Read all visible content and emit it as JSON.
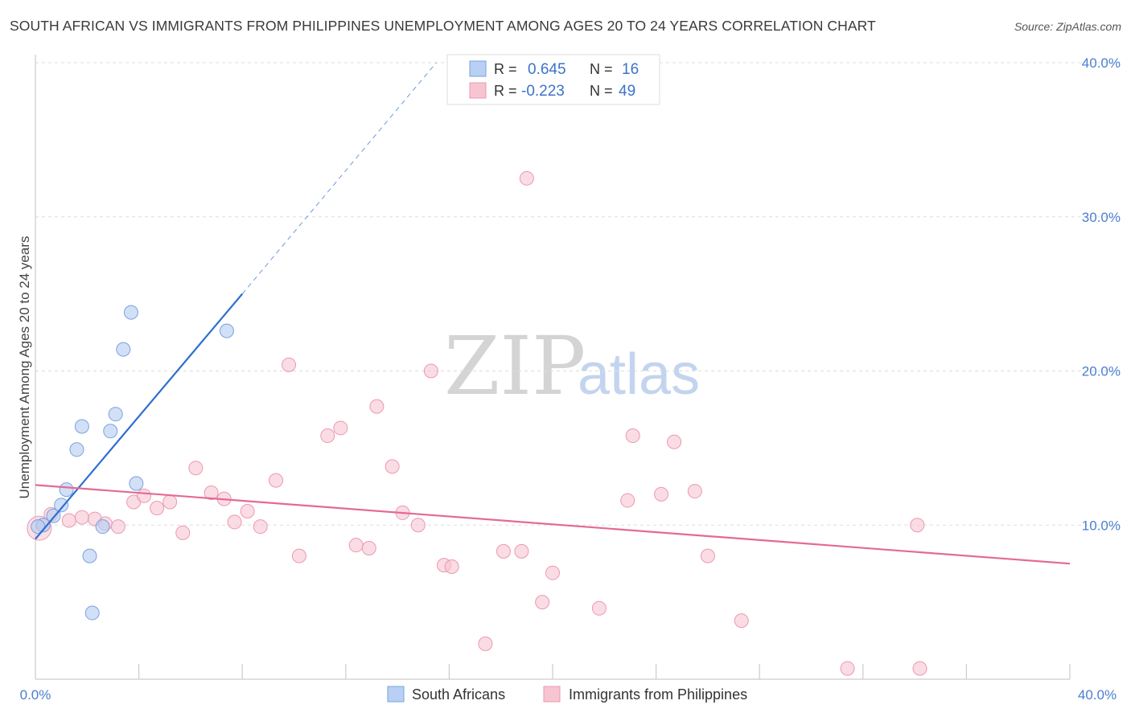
{
  "title": "SOUTH AFRICAN VS IMMIGRANTS FROM PHILIPPINES UNEMPLOYMENT AMONG AGES 20 TO 24 YEARS CORRELATION CHART",
  "source": "Source: ZipAtlas.com",
  "watermark": {
    "zip": "ZIP",
    "atlas": "atlas"
  },
  "colors": {
    "blue_fill": "#b8d0f3",
    "blue_stroke": "#7ba2dc",
    "blue_line": "#2f6fd0",
    "pink_fill": "#f7c4d2",
    "pink_stroke": "#ec98b1",
    "pink_line": "#e46a93",
    "axis_text": "#4a7fcf",
    "grid": "#dddddd"
  },
  "legend": {
    "series": [
      {
        "r_label": "R =",
        "r_value": "0.645",
        "n_label": "N =",
        "n_value": "16"
      },
      {
        "r_label": "R =",
        "r_value": "-0.223",
        "n_label": "N =",
        "n_value": "49"
      }
    ]
  },
  "chart_data": {
    "type": "scatter",
    "title": "SOUTH AFRICAN VS IMMIGRANTS FROM PHILIPPINES UNEMPLOYMENT AMONG AGES 20 TO 24 YEARS CORRELATION CHART",
    "xlabel": "",
    "ylabel": "Unemployment Among Ages 20 to 24 years",
    "xlim": [
      0,
      40
    ],
    "ylim": [
      0,
      40
    ],
    "x_tick_labels": [
      "0.0%",
      "40.0%"
    ],
    "y_ticks": [
      10,
      20,
      30,
      40
    ],
    "y_tick_labels": [
      "10.0%",
      "20.0%",
      "30.0%",
      "40.0%"
    ],
    "series": [
      {
        "name": "South Africans",
        "color": "blue",
        "points": [
          {
            "x": 0.3,
            "y": 10.0
          },
          {
            "x": 0.7,
            "y": 10.6
          },
          {
            "x": 1.0,
            "y": 11.3
          },
          {
            "x": 1.2,
            "y": 12.3
          },
          {
            "x": 1.6,
            "y": 14.9
          },
          {
            "x": 1.8,
            "y": 16.4
          },
          {
            "x": 2.1,
            "y": 8.0
          },
          {
            "x": 2.2,
            "y": 4.3
          },
          {
            "x": 2.6,
            "y": 9.9
          },
          {
            "x": 2.9,
            "y": 16.1
          },
          {
            "x": 3.1,
            "y": 17.2
          },
          {
            "x": 3.4,
            "y": 21.4
          },
          {
            "x": 3.7,
            "y": 23.8
          },
          {
            "x": 3.9,
            "y": 12.7
          },
          {
            "x": 7.4,
            "y": 22.6
          },
          {
            "x": 0.1,
            "y": 9.9
          }
        ],
        "trend": {
          "x0": 0.0,
          "y0": 9.1,
          "x1": 8.0,
          "y1": 25.0,
          "dash_to_x": 15.5,
          "dash_to_y": 40.0
        }
      },
      {
        "name": "Immigrants from Philippines",
        "color": "pink",
        "points": [
          {
            "x": 0.3,
            "y": 10.0
          },
          {
            "x": 0.6,
            "y": 10.7
          },
          {
            "x": 1.3,
            "y": 10.3
          },
          {
            "x": 1.8,
            "y": 10.5
          },
          {
            "x": 2.3,
            "y": 10.4
          },
          {
            "x": 2.7,
            "y": 10.1
          },
          {
            "x": 3.2,
            "y": 9.9
          },
          {
            "x": 3.8,
            "y": 11.5
          },
          {
            "x": 4.2,
            "y": 11.9
          },
          {
            "x": 4.7,
            "y": 11.1
          },
          {
            "x": 5.2,
            "y": 11.5
          },
          {
            "x": 5.7,
            "y": 9.5
          },
          {
            "x": 6.2,
            "y": 13.7
          },
          {
            "x": 6.8,
            "y": 12.1
          },
          {
            "x": 7.3,
            "y": 11.7
          },
          {
            "x": 7.7,
            "y": 10.2
          },
          {
            "x": 8.2,
            "y": 10.9
          },
          {
            "x": 8.7,
            "y": 9.9
          },
          {
            "x": 9.3,
            "y": 12.9
          },
          {
            "x": 9.8,
            "y": 20.4
          },
          {
            "x": 10.2,
            "y": 8.0
          },
          {
            "x": 11.3,
            "y": 15.8
          },
          {
            "x": 11.8,
            "y": 16.3
          },
          {
            "x": 12.4,
            "y": 8.7
          },
          {
            "x": 12.9,
            "y": 8.5
          },
          {
            "x": 13.2,
            "y": 17.7
          },
          {
            "x": 13.8,
            "y": 13.8
          },
          {
            "x": 14.2,
            "y": 10.8
          },
          {
            "x": 14.8,
            "y": 10.0
          },
          {
            "x": 15.3,
            "y": 20.0
          },
          {
            "x": 15.8,
            "y": 7.4
          },
          {
            "x": 16.1,
            "y": 7.3
          },
          {
            "x": 17.4,
            "y": 2.3
          },
          {
            "x": 18.1,
            "y": 8.3
          },
          {
            "x": 18.8,
            "y": 8.3
          },
          {
            "x": 19.0,
            "y": 32.5
          },
          {
            "x": 19.6,
            "y": 5.0
          },
          {
            "x": 20.0,
            "y": 6.9
          },
          {
            "x": 21.8,
            "y": 4.6
          },
          {
            "x": 22.9,
            "y": 11.6
          },
          {
            "x": 23.1,
            "y": 15.8
          },
          {
            "x": 24.2,
            "y": 12.0
          },
          {
            "x": 24.7,
            "y": 15.4
          },
          {
            "x": 25.5,
            "y": 12.2
          },
          {
            "x": 26.0,
            "y": 8.0
          },
          {
            "x": 27.3,
            "y": 3.8
          },
          {
            "x": 31.4,
            "y": 0.7
          },
          {
            "x": 34.1,
            "y": 10.0
          },
          {
            "x": 34.2,
            "y": 0.7
          }
        ],
        "trend": {
          "x0": 0.0,
          "y0": 12.6,
          "x1": 40.0,
          "y1": 7.5
        }
      }
    ],
    "grid": true,
    "legend_position": "top-center"
  }
}
